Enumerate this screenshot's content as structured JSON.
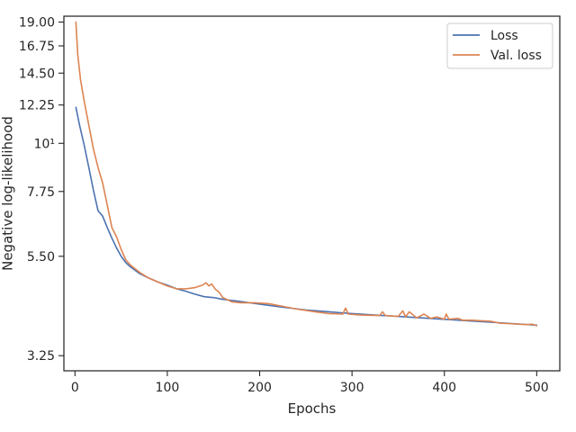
{
  "chart_data": {
    "type": "line",
    "xlabel": "Epochs",
    "ylabel": "Negative log-likelihood",
    "xlim": [
      -12,
      525
    ],
    "ylim": [
      3.0,
      19.6
    ],
    "yscale": "log",
    "grid": false,
    "legend_position": "top-right",
    "x_ticks": [
      0,
      100,
      200,
      300,
      400,
      500
    ],
    "x_tick_labels": [
      "0",
      "100",
      "200",
      "300",
      "400",
      "500"
    ],
    "y_ticks": [
      {
        "value": 3.25,
        "label": "3.25"
      },
      {
        "value": 5.5,
        "label": "5.50"
      },
      {
        "value": 7.75,
        "label": "7.75"
      },
      {
        "value": 10,
        "label": "10¹"
      },
      {
        "value": 12.25,
        "label": "12.25"
      },
      {
        "value": 14.5,
        "label": "14.50"
      },
      {
        "value": 16.75,
        "label": "16.75"
      },
      {
        "value": 19.0,
        "label": "19.00"
      }
    ],
    "series": [
      {
        "name": "Loss",
        "color": "#4c72b0",
        "x": [
          1,
          5,
          10,
          15,
          20,
          25,
          30,
          35,
          40,
          45,
          50,
          55,
          60,
          70,
          80,
          90,
          100,
          110,
          120,
          130,
          140,
          150,
          160,
          175,
          200,
          225,
          250,
          275,
          300,
          325,
          350,
          375,
          400,
          425,
          450,
          475,
          500
        ],
        "y": [
          12.1,
          11.0,
          9.9,
          8.8,
          7.8,
          7.0,
          6.8,
          6.4,
          6.05,
          5.75,
          5.5,
          5.32,
          5.2,
          5.02,
          4.9,
          4.8,
          4.72,
          4.63,
          4.57,
          4.5,
          4.44,
          4.42,
          4.38,
          4.34,
          4.27,
          4.2,
          4.14,
          4.1,
          4.06,
          4.03,
          4.0,
          3.97,
          3.94,
          3.91,
          3.88,
          3.85,
          3.82
        ]
      },
      {
        "name": "Val. loss",
        "color": "#dd8452",
        "x": [
          1,
          3,
          6,
          10,
          15,
          20,
          25,
          30,
          35,
          40,
          45,
          50,
          55,
          60,
          70,
          80,
          90,
          100,
          110,
          120,
          130,
          138,
          142,
          145,
          148,
          152,
          156,
          160,
          170,
          180,
          195,
          210,
          225,
          240,
          260,
          275,
          290,
          293,
          296,
          310,
          330,
          333,
          336,
          350,
          355,
          358,
          362,
          370,
          378,
          385,
          392,
          400,
          402,
          405,
          415,
          420,
          430,
          440,
          450,
          460,
          470,
          480,
          490,
          495,
          500
        ],
        "y": [
          19.0,
          16.0,
          14.0,
          12.5,
          11.0,
          9.7,
          8.8,
          8.1,
          7.2,
          6.4,
          6.1,
          5.7,
          5.4,
          5.25,
          5.05,
          4.9,
          4.8,
          4.7,
          4.63,
          4.63,
          4.66,
          4.72,
          4.78,
          4.7,
          4.75,
          4.62,
          4.55,
          4.42,
          4.32,
          4.3,
          4.3,
          4.28,
          4.22,
          4.16,
          4.1,
          4.06,
          4.05,
          4.18,
          4.05,
          4.03,
          4.02,
          4.1,
          4.02,
          4.0,
          4.12,
          3.99,
          4.1,
          3.97,
          4.05,
          3.96,
          3.99,
          3.94,
          4.05,
          3.94,
          3.96,
          3.92,
          3.92,
          3.91,
          3.9,
          3.86,
          3.85,
          3.84,
          3.83,
          3.84,
          3.81
        ]
      }
    ]
  }
}
